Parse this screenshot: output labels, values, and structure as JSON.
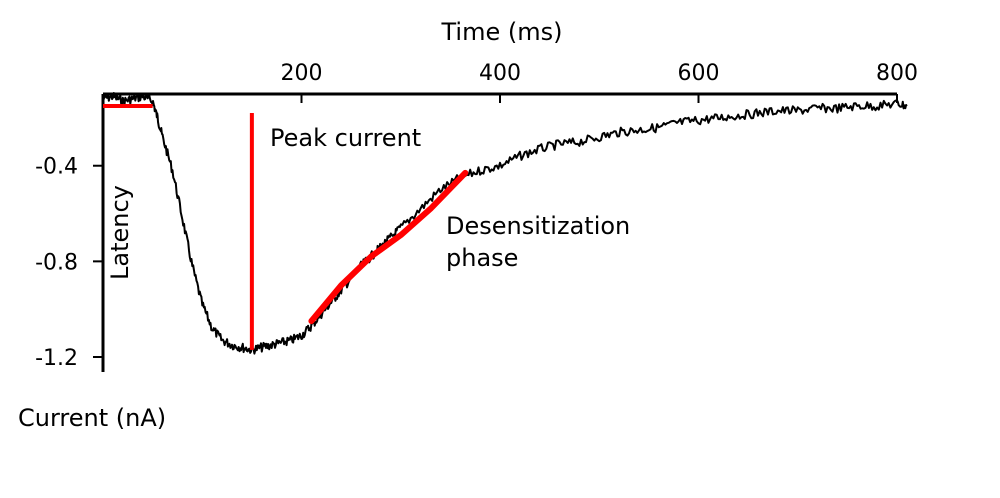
{
  "chart_data": {
    "type": "line",
    "title": "",
    "xlabel": "Time (ms)",
    "ylabel": "Current (nA)",
    "x_axis_position": "top",
    "xlim": [
      0,
      800
    ],
    "ylim": [
      -1.2,
      -0.1
    ],
    "xticks": [
      200,
      400,
      600,
      800
    ],
    "yticks": [
      -0.4,
      -0.8,
      -1.2
    ],
    "grid": false,
    "legend": "none",
    "colors": {
      "trace": "#000000",
      "annotation": "#ff0000"
    },
    "series": [
      {
        "color": "#000000",
        "x": [
          0,
          10,
          20,
          30,
          40,
          50,
          55,
          60,
          70,
          80,
          90,
          100,
          110,
          120,
          130,
          140,
          150,
          160,
          170,
          180,
          190,
          200,
          210,
          220,
          230,
          240,
          250,
          260,
          270,
          280,
          290,
          300,
          320,
          340,
          360,
          380,
          400,
          420,
          440,
          460,
          480,
          500,
          520,
          540,
          560,
          580,
          600,
          620,
          640,
          660,
          680,
          700,
          720,
          740,
          760,
          780,
          800,
          810
        ],
        "y": [
          -0.12,
          -0.11,
          -0.13,
          -0.12,
          -0.11,
          -0.13,
          -0.2,
          -0.28,
          -0.42,
          -0.62,
          -0.82,
          -0.98,
          -1.08,
          -1.13,
          -1.15,
          -1.16,
          -1.17,
          -1.16,
          -1.15,
          -1.14,
          -1.13,
          -1.11,
          -1.07,
          -1.02,
          -0.97,
          -0.92,
          -0.87,
          -0.82,
          -0.78,
          -0.74,
          -0.7,
          -0.66,
          -0.58,
          -0.5,
          -0.45,
          -0.42,
          -0.4,
          -0.36,
          -0.33,
          -0.31,
          -0.3,
          -0.28,
          -0.26,
          -0.25,
          -0.24,
          -0.22,
          -0.21,
          -0.2,
          -0.19,
          -0.18,
          -0.17,
          -0.17,
          -0.16,
          -0.16,
          -0.15,
          -0.15,
          -0.14,
          -0.15
        ]
      }
    ],
    "annotations": [
      {
        "text": "Latency",
        "kind": "horizontal-segment",
        "x0": 0,
        "x1": 50,
        "y": -0.15
      },
      {
        "text": "Peak current",
        "kind": "vertical-segment",
        "x": 150,
        "y0": -0.2,
        "y1": -1.17
      },
      {
        "text": "Desensitization phase",
        "lines": [
          "Desensitization",
          "phase"
        ],
        "kind": "fit-curve",
        "x": [
          210,
          240,
          270,
          300,
          330,
          365
        ],
        "y": [
          -1.05,
          -0.9,
          -0.78,
          -0.69,
          -0.58,
          -0.43
        ]
      }
    ]
  }
}
